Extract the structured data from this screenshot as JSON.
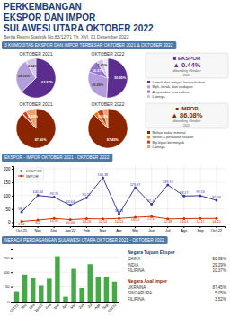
{
  "title": "PERKEMBANGAN\nEKSPOR DAN IMPOR\nSULAWESI UTARA OKTOBER 2022",
  "subtitle": "Berita Resmi Statistik No.83/12/71 Th. XVI, 01 Desember 2022",
  "annotations": [
    "3 KOMODITAS EKSPOR DAN IMPOR TERBESAR OKTOBER 2021 & OKTOBER 2022"
  ],
  "chart_data": [
    {
      "type": "pie",
      "title": "OKTOBER 2021",
      "categories": [
        "Lemak dan minyak hewan/nabati",
        "Bijih, kerak, dan endapan",
        "Ampas dan sisa industri",
        "Lainnya"
      ],
      "values": [
        62.87,
        28.16,
        0.63,
        8.34
      ],
      "value_labels": [
        "62.87%",
        "28.16%",
        null,
        "8.34%"
      ],
      "colors": [
        "#5b2d8e",
        "#b39ddb",
        "#9575cd",
        "#d1c4e9"
      ],
      "data_labels": true,
      "legend": "right",
      "annotations": [
        "■ EKSPOR",
        "▲ 0.44%",
        "dibanding Oktober\n2021"
      ]
    },
    {
      "type": "pie",
      "title": "OKTOBER 2022",
      "values": [
        50.95,
        29.29,
        10.37,
        5.41,
        3.98
      ],
      "value_labels": [
        "50.95%",
        "29.29%",
        "10.37%",
        "5.41%",
        null
      ],
      "colors": [
        "#5b2d8e",
        "#b39ddb",
        "#9575cd",
        "#d1c4e9",
        "#ede7f6"
      ],
      "data_labels": true
    },
    {
      "type": "pie",
      "title": "OKTOBER 2021",
      "categories": [
        "Bahan bakar mineral",
        "Mesin & peralatan reaktor",
        "Biji-bijian berminyak",
        "Lainnya"
      ],
      "values": [
        87.9,
        0.56,
        3.28,
        8.26
      ],
      "value_labels": [
        "87.90%",
        null,
        null,
        "8.26%"
      ],
      "colors": [
        "#8b2500",
        "#e57c00",
        "#c94020",
        "#f0a060"
      ],
      "data_labels": true,
      "legend": "right",
      "annotations": [
        "■ IMPOR",
        "▲ 86.08%",
        "dibanding Oktober\n2021"
      ]
    },
    {
      "type": "pie",
      "title": "OKTOBER 2022",
      "values": [
        87.45,
        3.52,
        5.05,
        3.98
      ],
      "value_labels": [
        "87.45%",
        null,
        "5.05%",
        null
      ],
      "colors": [
        "#8b2500",
        "#e57c00",
        "#c94020",
        "#f0a060"
      ],
      "data_labels": true
    },
    {
      "type": "line",
      "title": "EKSPOR - IMPOR OKTOBER 2021 - OKTOBER 2022",
      "categories": [
        "Oct 21",
        "Nov",
        "Dec",
        "Jan'22",
        "Feb",
        "Mar",
        "Apr",
        "Mei",
        "Jun",
        "Jul",
        "Ags",
        "Sep",
        "Oct 22"
      ],
      "series": [
        {
          "name": "EKSPOR",
          "color": "#3b3b9e",
          "marker": "circle",
          "values": [
            38.4,
            100.44,
            93.78,
            63.64,
            91.52,
            166.38,
            30.44,
            129.67,
            67.41,
            139.74,
            98.17,
            99.53,
            82.09
          ]
        },
        {
          "name": "IMPOR",
          "color": "#cc3300",
          "marker": "circle",
          "values": [
            3.52,
            8.2,
            14.38,
            10.06,
            13.28,
            12.53,
            14.13,
            18.43,
            21.47,
            12.38,
            13.61,
            14.17,
            14.22
          ]
        }
      ],
      "ylim": [
        -15,
        210
      ],
      "yticks": [
        0,
        50,
        100,
        150,
        200
      ],
      "grid": true,
      "legend": "upper left",
      "data_labels": true
    },
    {
      "type": "bar",
      "title": "NERACA PERDAGANGAN SULAWESI UTARA OKTOBER 2021 - OKTOBER 2022",
      "categories": [
        "Okt'21",
        "Nov",
        "Des",
        "Jan'22",
        "Feb",
        "Mar",
        "Apr",
        "Mei",
        "Jun",
        "Jul",
        "Ags",
        "Sep",
        "Okt'22"
      ],
      "values": [
        34.88,
        92.24,
        79.4,
        53.58,
        78.24,
        153.85,
        16.31,
        111.24,
        45.94,
        127.36,
        84.56,
        85.36,
        67.87
      ],
      "color": "#44aa44",
      "ylim": [
        0,
        180
      ],
      "yticks": [
        0,
        50,
        100,
        150
      ],
      "grid": "y"
    },
    {
      "type": "table",
      "title": "Negara Tujuan Ekspor",
      "color": "#1a3a6e",
      "categories": [
        "CHINA",
        "INDIA",
        "FILIPINA"
      ],
      "values": [
        50.95,
        29.29,
        10.37
      ],
      "value_labels": [
        "50.95%",
        "29.29%",
        "10.37%"
      ]
    },
    {
      "type": "table",
      "title": "Negara Asal Impor",
      "color": "#8b2500",
      "categories": [
        "UKRAINA",
        "SINGAPURA",
        "FILIPINA"
      ],
      "values": [
        87.45,
        5.05,
        3.52
      ],
      "value_labels": [
        "87.45%",
        "5.05%",
        "3.52%"
      ]
    }
  ]
}
